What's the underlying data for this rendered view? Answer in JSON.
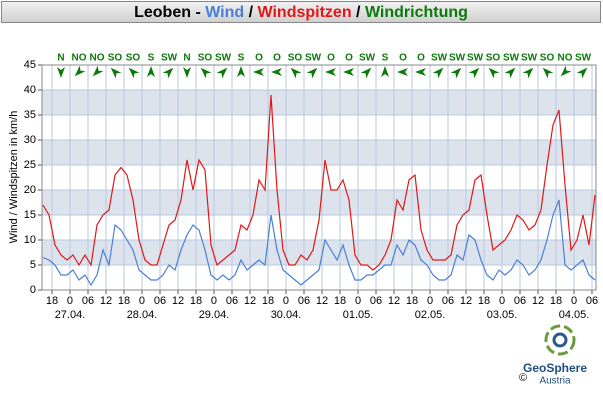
{
  "chart_data": {
    "type": "line",
    "title_prefix": "Leoben - ",
    "title_separator": " / ",
    "y_label": "Wind / Windspitzen in km/h",
    "x": [
      -9,
      -7,
      -5,
      -3,
      -1,
      1,
      3,
      5,
      7,
      9,
      11,
      13,
      15,
      17,
      19,
      21,
      23,
      25,
      27,
      29,
      31,
      33,
      35,
      37,
      39,
      41,
      43,
      45,
      47,
      49,
      51,
      53,
      55,
      57,
      59,
      61,
      63,
      65,
      67,
      69,
      71,
      73,
      75,
      77,
      79,
      81,
      83,
      85,
      87,
      89,
      91,
      93,
      95,
      97,
      99,
      101,
      103,
      105,
      107,
      109,
      111,
      113,
      115,
      117,
      119,
      121,
      123,
      125,
      127,
      129,
      131,
      133,
      135,
      137,
      139,
      141,
      143,
      145,
      147,
      149,
      151,
      153,
      155,
      157,
      159,
      161,
      163,
      165,
      167,
      169,
      171,
      173,
      175
    ],
    "series": [
      {
        "name": "Wind",
        "color": "#4a7fd8",
        "values": [
          6.5,
          6,
          5,
          3,
          3,
          4,
          2,
          3,
          1,
          3,
          8,
          5,
          13,
          12,
          10,
          8,
          4,
          3,
          2,
          2,
          3,
          5,
          4,
          8,
          11,
          13,
          12,
          8,
          3,
          2,
          3,
          2,
          3,
          6,
          4,
          5,
          6,
          5,
          15,
          8,
          4,
          3,
          2,
          1,
          2,
          3,
          4,
          10,
          8,
          6,
          9,
          5,
          2,
          2,
          3,
          3,
          4,
          5,
          5,
          9,
          7,
          10,
          9,
          6,
          5,
          3,
          2,
          2,
          3,
          7,
          6,
          11,
          10,
          6,
          3,
          2,
          4,
          3,
          4,
          6,
          5,
          3,
          4,
          6,
          10,
          15,
          18,
          5,
          4,
          5,
          6,
          3,
          2
        ]
      },
      {
        "name": "Windspitzen",
        "color": "#e01818",
        "values": [
          17,
          15,
          9,
          7,
          6,
          7,
          5,
          7,
          5,
          13,
          15,
          16,
          23,
          24.5,
          23,
          18,
          10,
          6,
          5,
          5,
          9,
          13,
          14,
          18,
          26,
          20,
          26,
          24,
          9,
          5,
          6,
          7,
          8,
          13,
          12,
          15,
          22,
          20,
          39,
          20,
          8,
          5,
          5,
          7,
          6,
          8,
          14,
          26,
          20,
          20,
          22,
          18,
          7,
          5,
          5,
          4,
          5,
          7,
          10,
          18,
          16,
          22,
          23,
          12,
          8,
          6,
          6,
          6,
          7,
          13,
          15,
          16,
          22,
          23,
          15,
          8,
          9,
          10,
          12,
          15,
          14,
          12,
          13,
          16,
          25,
          33,
          36,
          21,
          8,
          10,
          15,
          9,
          19
        ]
      }
    ],
    "directions": {
      "name": "Windrichtung",
      "color": "#0a7a0a",
      "x": [
        -3,
        3,
        9,
        15,
        21,
        27,
        33,
        39,
        45,
        51,
        57,
        63,
        69,
        75,
        81,
        87,
        93,
        99,
        105,
        111,
        117,
        123,
        129,
        135,
        141,
        147,
        153,
        159,
        165,
        171
      ],
      "labels": [
        "N",
        "NO",
        "NO",
        "SO",
        "SO",
        "S",
        "SW",
        "N",
        "SO",
        "SW",
        "S",
        "O",
        "O",
        "SO",
        "SW",
        "O",
        "O",
        "SW",
        "S",
        "O",
        "O",
        "SW",
        "SW",
        "SW",
        "SO",
        "SW",
        "SW",
        "SO",
        "NO",
        "SW"
      ],
      "degrees": [
        0,
        45,
        45,
        135,
        135,
        180,
        225,
        0,
        135,
        225,
        180,
        90,
        90,
        135,
        225,
        90,
        90,
        225,
        180,
        90,
        90,
        225,
        225,
        225,
        135,
        225,
        225,
        135,
        45,
        225
      ]
    },
    "xlim": [
      -9.33,
      175.33
    ],
    "xticks": [
      {
        "value": -6,
        "label": "18"
      },
      {
        "value": 0,
        "label": "0"
      },
      {
        "value": 6,
        "label": "06"
      },
      {
        "value": 12,
        "label": "12"
      },
      {
        "value": 18,
        "label": "18"
      },
      {
        "value": 24,
        "label": "0"
      },
      {
        "value": 30,
        "label": "06"
      },
      {
        "value": 36,
        "label": "12"
      },
      {
        "value": 42,
        "label": "18"
      },
      {
        "value": 48,
        "label": "0"
      },
      {
        "value": 54,
        "label": "06"
      },
      {
        "value": 60,
        "label": "12"
      },
      {
        "value": 66,
        "label": "18"
      },
      {
        "value": 72,
        "label": "0"
      },
      {
        "value": 78,
        "label": "06"
      },
      {
        "value": 84,
        "label": "12"
      },
      {
        "value": 90,
        "label": "18"
      },
      {
        "value": 96,
        "label": "0"
      },
      {
        "value": 102,
        "label": "06"
      },
      {
        "value": 108,
        "label": "12"
      },
      {
        "value": 114,
        "label": "18"
      },
      {
        "value": 120,
        "label": "0"
      },
      {
        "value": 126,
        "label": "06"
      },
      {
        "value": 132,
        "label": "12"
      },
      {
        "value": 138,
        "label": "18"
      },
      {
        "value": 144,
        "label": "0"
      },
      {
        "value": 150,
        "label": "06"
      },
      {
        "value": 156,
        "label": "12"
      },
      {
        "value": 162,
        "label": "18"
      },
      {
        "value": 168,
        "label": "0"
      },
      {
        "value": 174,
        "label": "06"
      }
    ],
    "xdates": [
      {
        "value": 0,
        "label": "27.04."
      },
      {
        "value": 24,
        "label": "28.04."
      },
      {
        "value": 48,
        "label": "29.04."
      },
      {
        "value": 72,
        "label": "30.04."
      },
      {
        "value": 96,
        "label": "01.05."
      },
      {
        "value": 120,
        "label": "02.05."
      },
      {
        "value": 144,
        "label": "03.05."
      },
      {
        "value": 168,
        "label": "04.05."
      }
    ],
    "ylim": [
      0,
      45
    ],
    "yticks": [
      0,
      5,
      10,
      15,
      20,
      25,
      30,
      35,
      40,
      45
    ],
    "grid": true,
    "bands": true,
    "logo": {
      "name": "GeoSphere",
      "sub": "Austria",
      "copyright": "©"
    }
  }
}
